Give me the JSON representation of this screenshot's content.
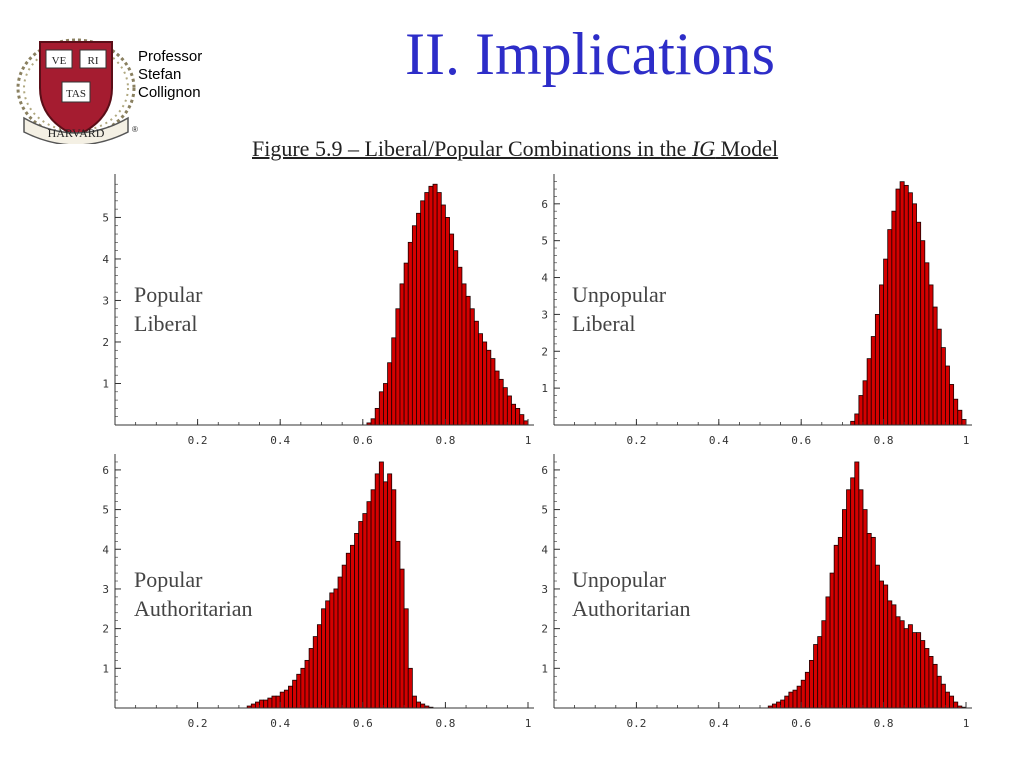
{
  "slide": {
    "title": "II. Implications",
    "author_lines": [
      "Professor",
      "Stefan",
      "Collignon"
    ]
  },
  "logo": {
    "icon": "harvard-shield-icon",
    "shield_texts": [
      "VE",
      "RI",
      "TAS"
    ],
    "banner_text": "HARVARD",
    "registered": "®"
  },
  "figure": {
    "caption_prefix": "Figure 5.9 – Liberal/Popular Combinations in the ",
    "caption_em": "IG",
    "caption_suffix": " Model"
  },
  "colors": {
    "bar_fill": "#d40000",
    "bar_stroke": "#1a0000",
    "axis": "#333333",
    "title": "#2d2dc8"
  },
  "chart_data": [
    {
      "type": "bar",
      "label_lines": [
        "Popular",
        "Liberal"
      ],
      "x_ticks": [
        "0.2",
        "0.4",
        "0.6",
        "0.8",
        "1"
      ],
      "y_ticks": [
        "1",
        "2",
        "3",
        "4",
        "5"
      ],
      "xlim": [
        0,
        1
      ],
      "ylim": [
        0,
        5.95
      ],
      "bin_width": 0.01,
      "x": [
        0.61,
        0.62,
        0.63,
        0.64,
        0.65,
        0.66,
        0.67,
        0.68,
        0.69,
        0.7,
        0.71,
        0.72,
        0.73,
        0.74,
        0.75,
        0.76,
        0.77,
        0.78,
        0.79,
        0.8,
        0.81,
        0.82,
        0.83,
        0.84,
        0.85,
        0.86,
        0.87,
        0.88,
        0.89,
        0.9,
        0.91,
        0.92,
        0.93,
        0.94,
        0.95,
        0.96,
        0.97,
        0.98,
        0.99
      ],
      "values": [
        0.05,
        0.15,
        0.4,
        0.8,
        1.0,
        1.5,
        2.1,
        2.8,
        3.4,
        3.9,
        4.4,
        4.8,
        5.1,
        5.4,
        5.6,
        5.75,
        5.8,
        5.6,
        5.3,
        5.0,
        4.6,
        4.2,
        3.8,
        3.4,
        3.1,
        2.8,
        2.5,
        2.2,
        2.0,
        1.8,
        1.6,
        1.3,
        1.1,
        0.9,
        0.7,
        0.5,
        0.4,
        0.25,
        0.1
      ]
    },
    {
      "type": "bar",
      "label_lines": [
        "Unpopular",
        "Liberal"
      ],
      "x_ticks": [
        "0.2",
        "0.4",
        "0.6",
        "0.8",
        "1"
      ],
      "y_ticks": [
        "1",
        "2",
        "3",
        "4",
        "5",
        "6"
      ],
      "xlim": [
        0,
        1
      ],
      "ylim": [
        0,
        6.7
      ],
      "bin_width": 0.01,
      "x": [
        0.72,
        0.73,
        0.74,
        0.75,
        0.76,
        0.77,
        0.78,
        0.79,
        0.8,
        0.81,
        0.82,
        0.83,
        0.84,
        0.85,
        0.86,
        0.87,
        0.88,
        0.89,
        0.9,
        0.91,
        0.92,
        0.93,
        0.94,
        0.95,
        0.96,
        0.97,
        0.98,
        0.99
      ],
      "values": [
        0.1,
        0.3,
        0.8,
        1.2,
        1.8,
        2.4,
        3.0,
        3.8,
        4.5,
        5.3,
        5.8,
        6.4,
        6.6,
        6.5,
        6.3,
        6.0,
        5.5,
        5.0,
        4.4,
        3.8,
        3.2,
        2.6,
        2.1,
        1.6,
        1.1,
        0.7,
        0.4,
        0.15
      ]
    },
    {
      "type": "bar",
      "label_lines": [
        "Popular",
        "Authoritarian"
      ],
      "x_ticks": [
        "0.2",
        "0.4",
        "0.6",
        "0.8",
        "1"
      ],
      "y_ticks": [
        "1",
        "2",
        "3",
        "4",
        "5",
        "6"
      ],
      "xlim": [
        0,
        1
      ],
      "ylim": [
        0,
        6.3
      ],
      "bin_width": 0.01,
      "x": [
        0.32,
        0.33,
        0.34,
        0.35,
        0.36,
        0.37,
        0.38,
        0.39,
        0.4,
        0.41,
        0.42,
        0.43,
        0.44,
        0.45,
        0.46,
        0.47,
        0.48,
        0.49,
        0.5,
        0.51,
        0.52,
        0.53,
        0.54,
        0.55,
        0.56,
        0.57,
        0.58,
        0.59,
        0.6,
        0.61,
        0.62,
        0.63,
        0.64,
        0.65,
        0.66,
        0.67,
        0.68,
        0.69,
        0.7,
        0.71,
        0.72,
        0.73,
        0.74,
        0.75,
        0.76
      ],
      "values": [
        0.05,
        0.1,
        0.15,
        0.2,
        0.2,
        0.25,
        0.3,
        0.3,
        0.4,
        0.45,
        0.55,
        0.7,
        0.85,
        1.0,
        1.2,
        1.5,
        1.8,
        2.1,
        2.5,
        2.7,
        2.9,
        3.0,
        3.3,
        3.6,
        3.9,
        4.1,
        4.4,
        4.7,
        4.9,
        5.2,
        5.5,
        5.9,
        6.2,
        5.7,
        5.9,
        5.5,
        4.2,
        3.5,
        2.5,
        1.0,
        0.3,
        0.15,
        0.1,
        0.05,
        0.02
      ]
    },
    {
      "type": "bar",
      "label_lines": [
        "Unpopular",
        "Authoritarian"
      ],
      "x_ticks": [
        "0.2",
        "0.4",
        "0.6",
        "0.8",
        "1"
      ],
      "y_ticks": [
        "1",
        "2",
        "3",
        "4",
        "5",
        "6"
      ],
      "xlim": [
        0,
        1
      ],
      "ylim": [
        0,
        6.3
      ],
      "bin_width": 0.01,
      "x": [
        0.52,
        0.53,
        0.54,
        0.55,
        0.56,
        0.57,
        0.58,
        0.59,
        0.6,
        0.61,
        0.62,
        0.63,
        0.64,
        0.65,
        0.66,
        0.67,
        0.68,
        0.69,
        0.7,
        0.71,
        0.72,
        0.73,
        0.74,
        0.75,
        0.76,
        0.77,
        0.78,
        0.79,
        0.8,
        0.81,
        0.82,
        0.83,
        0.84,
        0.85,
        0.86,
        0.87,
        0.88,
        0.89,
        0.9,
        0.91,
        0.92,
        0.93,
        0.94,
        0.95,
        0.96,
        0.97,
        0.98,
        0.99
      ],
      "values": [
        0.05,
        0.1,
        0.15,
        0.2,
        0.3,
        0.4,
        0.45,
        0.55,
        0.7,
        0.9,
        1.2,
        1.6,
        1.8,
        2.2,
        2.8,
        3.4,
        4.1,
        4.3,
        5.0,
        5.5,
        5.8,
        6.2,
        5.5,
        5.0,
        4.4,
        4.3,
        3.6,
        3.2,
        3.1,
        2.7,
        2.6,
        2.3,
        2.2,
        2.0,
        2.1,
        1.9,
        1.9,
        1.7,
        1.5,
        1.3,
        1.1,
        0.8,
        0.6,
        0.4,
        0.3,
        0.15,
        0.05,
        0.02
      ]
    }
  ]
}
